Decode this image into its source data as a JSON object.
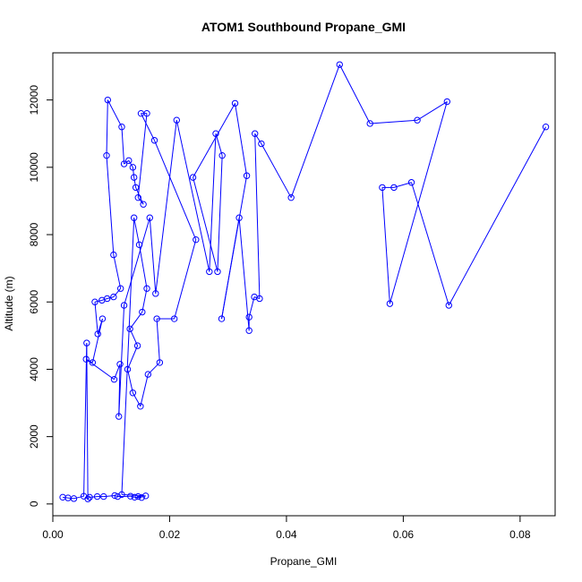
{
  "chart_data": {
    "type": "scatter",
    "title": "ATOM1 Southbound Propane_GMI",
    "xlabel": "Propane_GMI",
    "ylabel": "Altitude (m)",
    "xlim": [
      0.0,
      0.086
    ],
    "ylim": [
      -350,
      13400
    ],
    "xticks": [
      0.0,
      0.02,
      0.04,
      0.06,
      0.08
    ],
    "xtick_labels": [
      "0.00",
      "0.02",
      "0.04",
      "0.06",
      "0.08"
    ],
    "yticks": [
      0,
      2000,
      4000,
      6000,
      8000,
      10000,
      12000
    ],
    "ytick_labels": [
      "0",
      "2000",
      "4000",
      "6000",
      "8000",
      "10000",
      "12000"
    ],
    "grid": false,
    "marker": "open-circle",
    "connect_points": true,
    "series": [
      {
        "color": "#0000ff",
        "points": [
          [
            0.0017,
            200
          ],
          [
            0.0026,
            180
          ],
          [
            0.0036,
            160
          ],
          [
            0.0053,
            230
          ],
          [
            0.0058,
            4780
          ],
          [
            0.006,
            150
          ],
          [
            0.0063,
            200
          ],
          [
            0.0076,
            220
          ],
          [
            0.0087,
            220
          ],
          [
            0.0106,
            250
          ],
          [
            0.0111,
            220
          ],
          [
            0.0133,
            230
          ],
          [
            0.014,
            200
          ],
          [
            0.0152,
            190
          ],
          [
            0.0146,
            220
          ],
          [
            0.0159,
            240
          ],
          [
            0.0118,
            280
          ],
          [
            0.0139,
            8500
          ],
          [
            0.0148,
            7700
          ],
          [
            0.0161,
            6400
          ],
          [
            0.0153,
            5700
          ],
          [
            0.0132,
            5200
          ],
          [
            0.0145,
            4700
          ],
          [
            0.0128,
            4000
          ],
          [
            0.0137,
            3300
          ],
          [
            0.015,
            2900
          ],
          [
            0.0163,
            3850
          ],
          [
            0.0183,
            4200
          ],
          [
            0.0178,
            5500
          ],
          [
            0.0208,
            5500
          ],
          [
            0.0245,
            7850
          ],
          [
            0.0174,
            10800
          ],
          [
            0.0151,
            11600
          ],
          [
            0.0161,
            11600
          ],
          [
            0.0146,
            9100
          ],
          [
            0.0155,
            8900
          ],
          [
            0.0142,
            9400
          ],
          [
            0.0139,
            9700
          ],
          [
            0.0137,
            10000
          ],
          [
            0.013,
            10200
          ],
          [
            0.0122,
            10100
          ],
          [
            0.0118,
            11200
          ],
          [
            0.0094,
            12000
          ],
          [
            0.0092,
            10350
          ],
          [
            0.0104,
            7400
          ],
          [
            0.0116,
            6400
          ],
          [
            0.0104,
            6150
          ],
          [
            0.0093,
            6100
          ],
          [
            0.0084,
            6050
          ],
          [
            0.0072,
            6000
          ],
          [
            0.0077,
            5050
          ],
          [
            0.0085,
            5500
          ],
          [
            0.0068,
            4200
          ],
          [
            0.0057,
            4300
          ],
          [
            0.0105,
            3700
          ],
          [
            0.0115,
            4150
          ],
          [
            0.0113,
            2600
          ],
          [
            0.0122,
            5900
          ],
          [
            0.0166,
            8500
          ],
          [
            0.0176,
            6250
          ],
          [
            0.0212,
            11400
          ],
          [
            0.0268,
            6900
          ],
          [
            0.0279,
            11000
          ],
          [
            0.029,
            10350
          ],
          [
            0.0282,
            6900
          ],
          [
            0.024,
            9700
          ],
          [
            0.0312,
            11900
          ],
          [
            0.0332,
            9750
          ],
          [
            0.0289,
            5500
          ],
          [
            0.0319,
            8500
          ],
          [
            0.0336,
            5150
          ],
          [
            0.0336,
            5550
          ],
          [
            0.0345,
            6150
          ],
          [
            0.0354,
            6100
          ],
          [
            0.0346,
            11000
          ],
          [
            0.0357,
            10700
          ],
          [
            0.0408,
            9100
          ],
          [
            0.0491,
            13050
          ],
          [
            0.0543,
            11300
          ],
          [
            0.0624,
            11400
          ],
          [
            0.0675,
            11950
          ],
          [
            0.0577,
            5950
          ],
          [
            0.0564,
            9400
          ],
          [
            0.0584,
            9400
          ],
          [
            0.0614,
            9550
          ],
          [
            0.0678,
            5900
          ],
          [
            0.0844,
            11200
          ]
        ]
      }
    ]
  }
}
